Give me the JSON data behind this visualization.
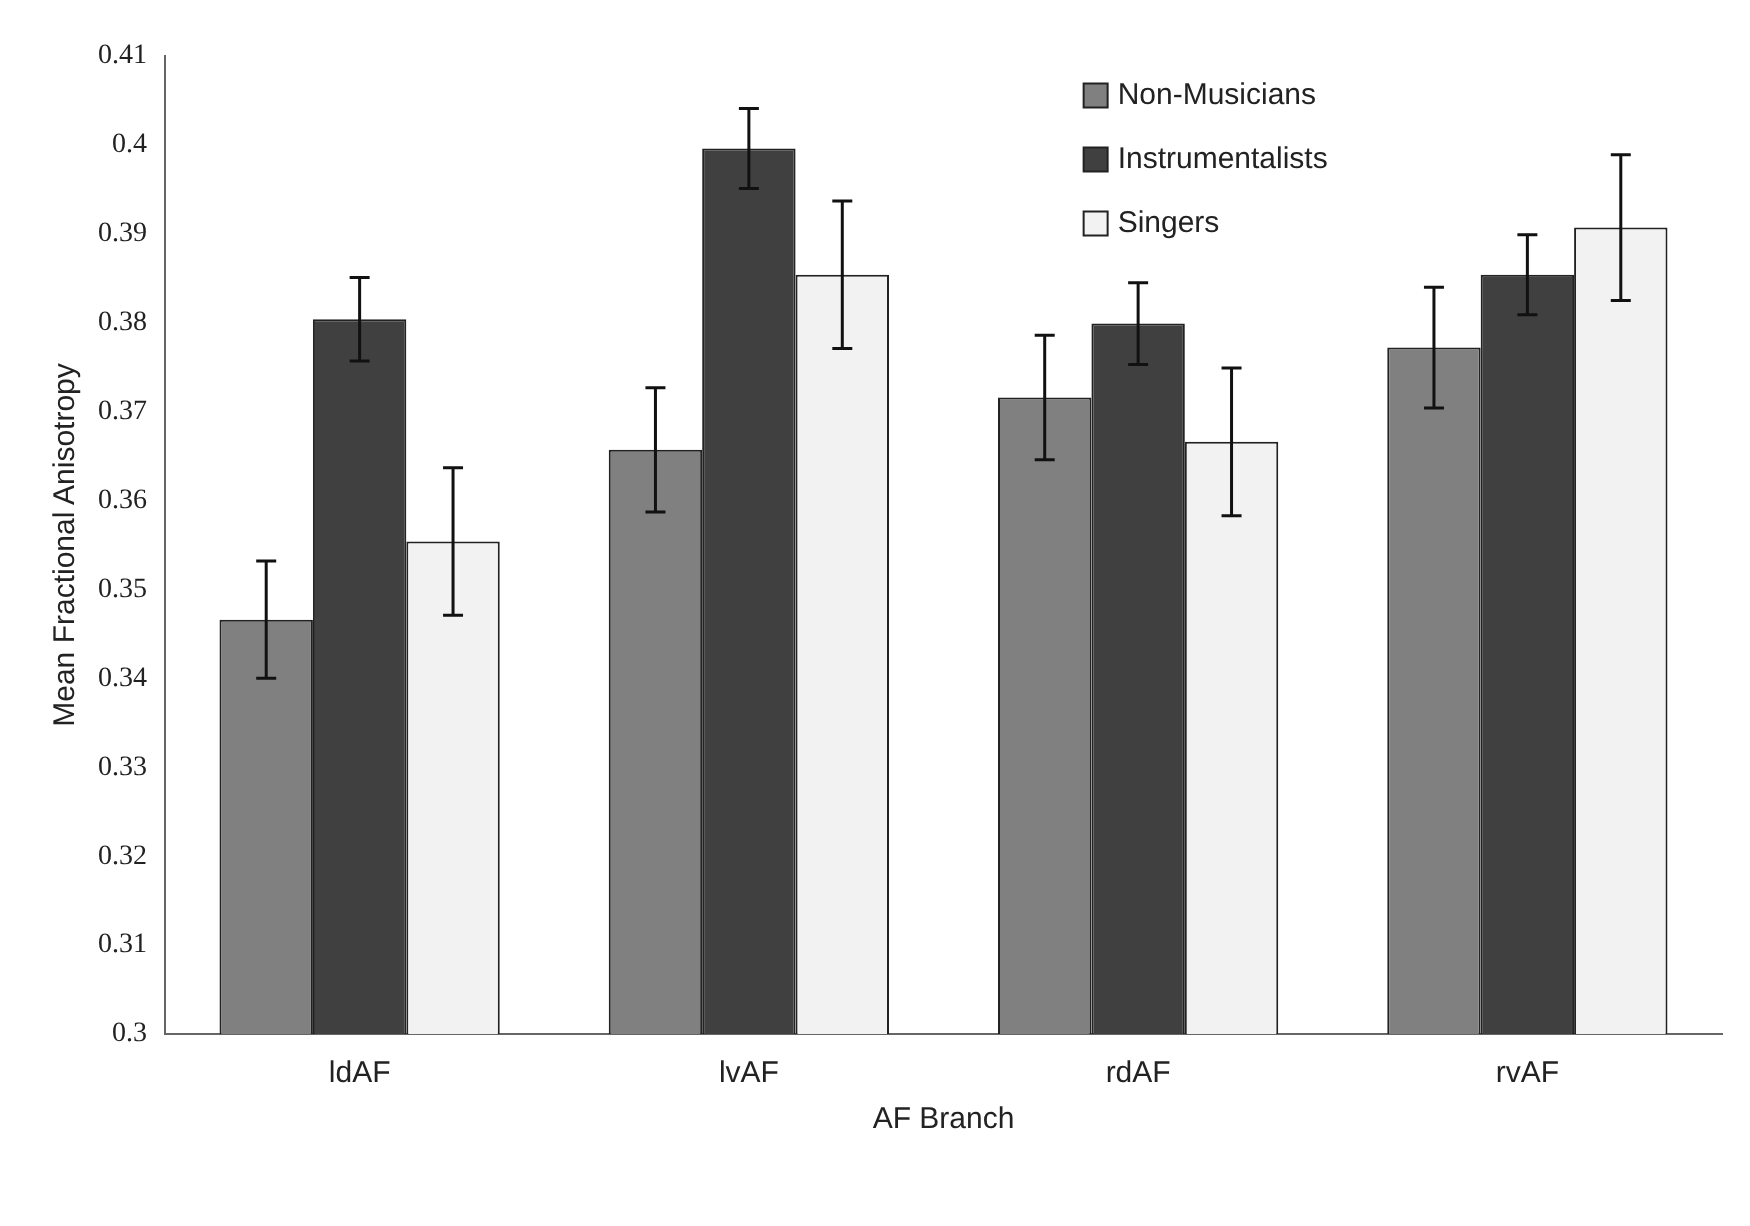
{
  "chart_data": {
    "type": "bar",
    "xlabel": "AF Branch",
    "ylabel": "Mean Fractional Anisotropy",
    "categories": [
      "ldAF",
      "lvAF",
      "rdAF",
      "rvAF"
    ],
    "series": [
      {
        "name": "Non-Musicians",
        "color": "#808080",
        "values": [
          0.3466,
          0.3657,
          0.3716,
          0.3772
        ],
        "errors": [
          0.0066,
          0.007,
          0.007,
          0.0068
        ]
      },
      {
        "name": "Instrumentalists",
        "color": "#404040",
        "values": [
          0.3804,
          0.3996,
          0.3799,
          0.3854
        ],
        "errors": [
          0.0047,
          0.0045,
          0.0046,
          0.0045
        ]
      },
      {
        "name": "Singers",
        "color": "#f2f2f2",
        "values": [
          0.3554,
          0.3854,
          0.3666,
          0.3907
        ],
        "errors": [
          0.0083,
          0.0083,
          0.0083,
          0.0082
        ]
      }
    ],
    "ylim": [
      0.3,
      0.41
    ],
    "yticks": [
      0.3,
      0.31,
      0.32,
      0.33,
      0.34,
      0.35,
      0.36,
      0.37,
      0.38,
      0.39,
      0.4,
      0.41
    ],
    "grid": false,
    "legend": "top right"
  }
}
